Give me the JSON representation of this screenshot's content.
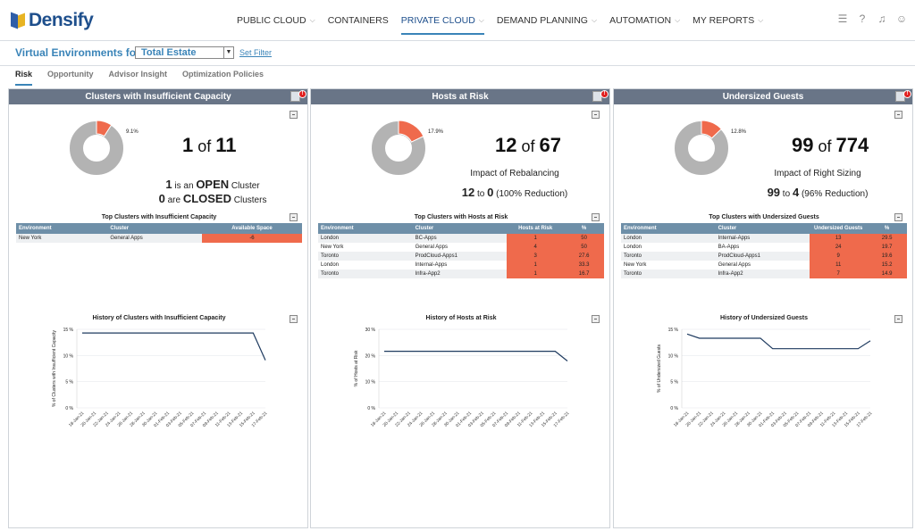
{
  "app": {
    "logo_text": "Densify",
    "nav": [
      "PUBLIC CLOUD",
      "CONTAINERS",
      "PRIVATE CLOUD",
      "DEMAND PLANNING",
      "AUTOMATION",
      "MY REPORTS"
    ],
    "nav_active": "PRIVATE CLOUD",
    "nav_chevrons": [
      true,
      false,
      true,
      true,
      true,
      true
    ]
  },
  "env": {
    "label": "Virtual Environments for",
    "selected": "Total Estate",
    "set_filter": "Set Filter"
  },
  "tabs": [
    "Risk",
    "Opportunity",
    "Advisor Insight",
    "Optimization Policies"
  ],
  "panels": [
    {
      "title": "Clusters with Insufficient Capacity",
      "donut_pct": "9.1%",
      "donut_fraction": 0.091,
      "count": "1",
      "of": "of",
      "total": "11",
      "line1": {
        "n": "1",
        "pre": "is an",
        "word": "OPEN",
        "post": "Cluster"
      },
      "line2": {
        "n": "0",
        "pre": "are",
        "word": "CLOSED",
        "post": "Clusters"
      },
      "table_title": "Top Clusters with Insufficient Capacity",
      "columns": [
        "Environment",
        "Cluster",
        "Available Space"
      ],
      "rows": [
        [
          "New York",
          "General Apps",
          "-6"
        ]
      ],
      "history_title": "History of Clusters with Insufficient Capacity",
      "history_ylabel": "% of Clusters with Insufficient Capacity",
      "chart_data": {
        "type": "line",
        "x": [
          "18-Jan-21",
          "20-Jan-21",
          "22-Jan-21",
          "24-Jan-21",
          "26-Jan-21",
          "28-Jan-21",
          "30-Jan-21",
          "01-Feb-21",
          "03-Feb-21",
          "05-Feb-21",
          "07-Feb-21",
          "09-Feb-21",
          "11-Feb-21",
          "13-Feb-21",
          "15-Feb-21",
          "17-Feb-21"
        ],
        "yticks": [
          "15 %",
          "10 %",
          "5 %",
          "0 %"
        ],
        "ylim": [
          0,
          15
        ],
        "values": [
          14.3,
          14.3,
          14.3,
          14.3,
          14.3,
          14.3,
          14.3,
          14.3,
          14.3,
          14.3,
          14.3,
          14.3,
          14.3,
          14.3,
          14.3,
          9.1
        ]
      }
    },
    {
      "title": "Hosts at Risk",
      "donut_pct": "17.9%",
      "donut_fraction": 0.179,
      "count": "12",
      "of": "of",
      "total": "67",
      "impact_label": "Impact of Rebalancing",
      "impact": {
        "from": "12",
        "to_word": "to",
        "to": "0",
        "note": "(100% Reduction)"
      },
      "table_title": "Top Clusters with Hosts at Risk",
      "columns": [
        "Environment",
        "Cluster",
        "Hosts at Risk",
        "%"
      ],
      "rows": [
        [
          "London",
          "BC-Apps",
          "1",
          "50"
        ],
        [
          "New York",
          "General Apps",
          "4",
          "50"
        ],
        [
          "Toronto",
          "ProdCloud-Apps1",
          "3",
          "27.6"
        ],
        [
          "London",
          "Internal-Apps",
          "1",
          "33.3"
        ],
        [
          "Toronto",
          "Infra-App2",
          "1",
          "16.7"
        ]
      ],
      "history_title": "History of Hosts at Risk",
      "history_ylabel": "% of Hosts at Risk",
      "chart_data": {
        "type": "line",
        "x": [
          "18-Jan-21",
          "20-Jan-21",
          "22-Jan-21",
          "24-Jan-21",
          "26-Jan-21",
          "28-Jan-21",
          "30-Jan-21",
          "01-Feb-21",
          "03-Feb-21",
          "05-Feb-21",
          "07-Feb-21",
          "09-Feb-21",
          "11-Feb-21",
          "13-Feb-21",
          "15-Feb-21",
          "17-Feb-21"
        ],
        "yticks": [
          "30 %",
          "20 %",
          "10 %",
          "0 %"
        ],
        "ylim": [
          0,
          30
        ],
        "values": [
          21.6,
          21.6,
          21.6,
          21.6,
          21.6,
          21.6,
          21.6,
          21.6,
          21.6,
          21.6,
          21.6,
          21.6,
          21.6,
          21.6,
          21.6,
          17.9
        ]
      }
    },
    {
      "title": "Undersized Guests",
      "donut_pct": "12.8%",
      "donut_fraction": 0.128,
      "count": "99",
      "of": "of",
      "total": "774",
      "impact_label": "Impact of Right Sizing",
      "impact": {
        "from": "99",
        "to_word": "to",
        "to": "4",
        "note": "(96% Reduction)"
      },
      "table_title": "Top Clusters with Undersized Guests",
      "columns": [
        "Environment",
        "Cluster",
        "Undersized Guests",
        "%"
      ],
      "rows": [
        [
          "London",
          "Internal-Apps",
          "13",
          "29.5"
        ],
        [
          "London",
          "BA-Apps",
          "24",
          "19.7"
        ],
        [
          "Toronto",
          "ProdCloud-Apps1",
          "9",
          "19.6"
        ],
        [
          "New York",
          "General Apps",
          "11",
          "15.2"
        ],
        [
          "Toronto",
          "Infra-App2",
          "7",
          "14.9"
        ]
      ],
      "history_title": "History of Undersized Guests",
      "history_ylabel": "% of Undersized Guests",
      "chart_data": {
        "type": "line",
        "x": [
          "18-Jan-21",
          "20-Jan-21",
          "22-Jan-21",
          "24-Jan-21",
          "26-Jan-21",
          "28-Jan-21",
          "30-Jan-21",
          "01-Feb-21",
          "03-Feb-21",
          "05-Feb-21",
          "07-Feb-21",
          "09-Feb-21",
          "11-Feb-21",
          "13-Feb-21",
          "15-Feb-21",
          "17-Feb-21"
        ],
        "yticks": [
          "15 %",
          "10 %",
          "5 %",
          "0 %"
        ],
        "ylim": [
          0,
          15
        ],
        "values": [
          14.1,
          13.3,
          13.3,
          13.3,
          13.3,
          13.3,
          13.3,
          11.3,
          11.3,
          11.3,
          11.3,
          11.3,
          11.3,
          11.3,
          11.3,
          12.8
        ]
      }
    }
  ],
  "colors": {
    "accent": "#3a84b8",
    "header": "#697587",
    "table_head": "#6e8fa8",
    "risk": "#ef6a4c",
    "donut_bg": "#b3b3b3",
    "donut_fg": "#ef6a4c",
    "line": "#1e3a5f"
  }
}
